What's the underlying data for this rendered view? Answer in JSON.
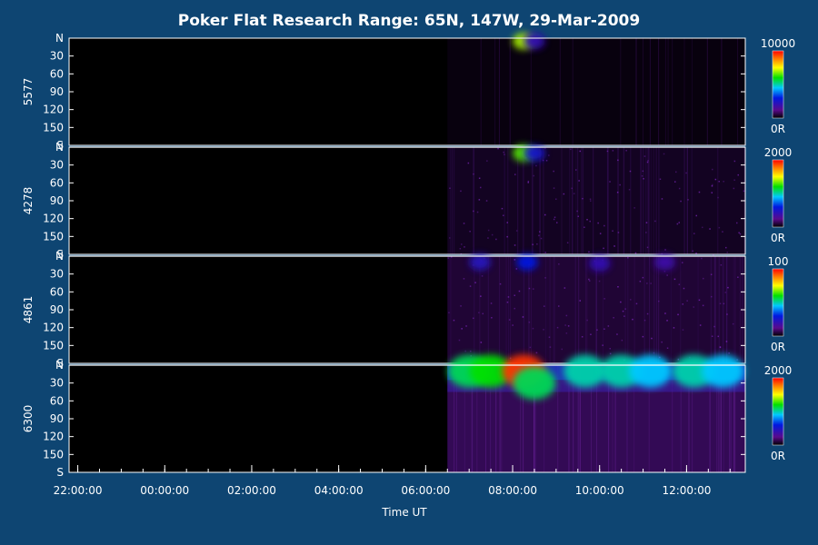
{
  "chart_data": {
    "type": "heatmap",
    "title": "Poker Flat Research Range: 65N, 147W, 29-Mar-2009",
    "xlabel": "Time UT",
    "x_ticks": [
      "22:00:00",
      "00:00:00",
      "02:00:00",
      "04:00:00",
      "06:00:00",
      "08:00:00",
      "10:00:00",
      "12:00:00"
    ],
    "x_range_hours_ut": [
      21.8,
      13.35
    ],
    "data_start_ut": "06:30",
    "y_ticks": [
      "N",
      "30",
      "60",
      "90",
      "120",
      "150",
      "S"
    ],
    "y_range_deg": [
      0,
      180
    ],
    "colormap": "rainbow",
    "panels": [
      {
        "wavelength": "5577",
        "scale_max": "10000",
        "scale_min": "0R",
        "features": [
          {
            "time_ut": "08:15",
            "angle_deg": 5,
            "intensity": 0.7
          },
          {
            "time_ut": "08:30",
            "angle_deg": 5,
            "intensity": 0.2
          }
        ]
      },
      {
        "wavelength": "4278",
        "scale_max": "2000",
        "scale_min": "0R",
        "features": [
          {
            "time_ut": "08:15",
            "angle_deg": 10,
            "intensity": 0.65
          },
          {
            "time_ut": "08:30",
            "angle_deg": 10,
            "intensity": 0.25
          }
        ]
      },
      {
        "wavelength": "4861",
        "scale_max": "100",
        "scale_min": "0R",
        "features": [
          {
            "time_ut": "07:15",
            "angle_deg": 10,
            "intensity": 0.22
          },
          {
            "time_ut": "08:20",
            "angle_deg": 10,
            "intensity": 0.3
          },
          {
            "time_ut": "10:00",
            "angle_deg": 12,
            "intensity": 0.2
          },
          {
            "time_ut": "11:30",
            "angle_deg": 10,
            "intensity": 0.18
          }
        ]
      },
      {
        "wavelength": "6300",
        "scale_max": "2000",
        "scale_min": "0R",
        "features": [
          {
            "time_ut": "07:00",
            "angle_deg": 10,
            "intensity": 0.55
          },
          {
            "time_ut": "07:30",
            "angle_deg": 10,
            "intensity": 0.6
          },
          {
            "time_ut": "08:15",
            "angle_deg": 10,
            "intensity": 0.95
          },
          {
            "time_ut": "08:30",
            "angle_deg": 30,
            "intensity": 0.55
          },
          {
            "time_ut": "09:40",
            "angle_deg": 10,
            "intensity": 0.5
          },
          {
            "time_ut": "10:30",
            "angle_deg": 10,
            "intensity": 0.5
          },
          {
            "time_ut": "11:10",
            "angle_deg": 10,
            "intensity": 0.45
          },
          {
            "time_ut": "12:10",
            "angle_deg": 10,
            "intensity": 0.5
          },
          {
            "time_ut": "12:50",
            "angle_deg": 10,
            "intensity": 0.45
          }
        ]
      }
    ]
  }
}
